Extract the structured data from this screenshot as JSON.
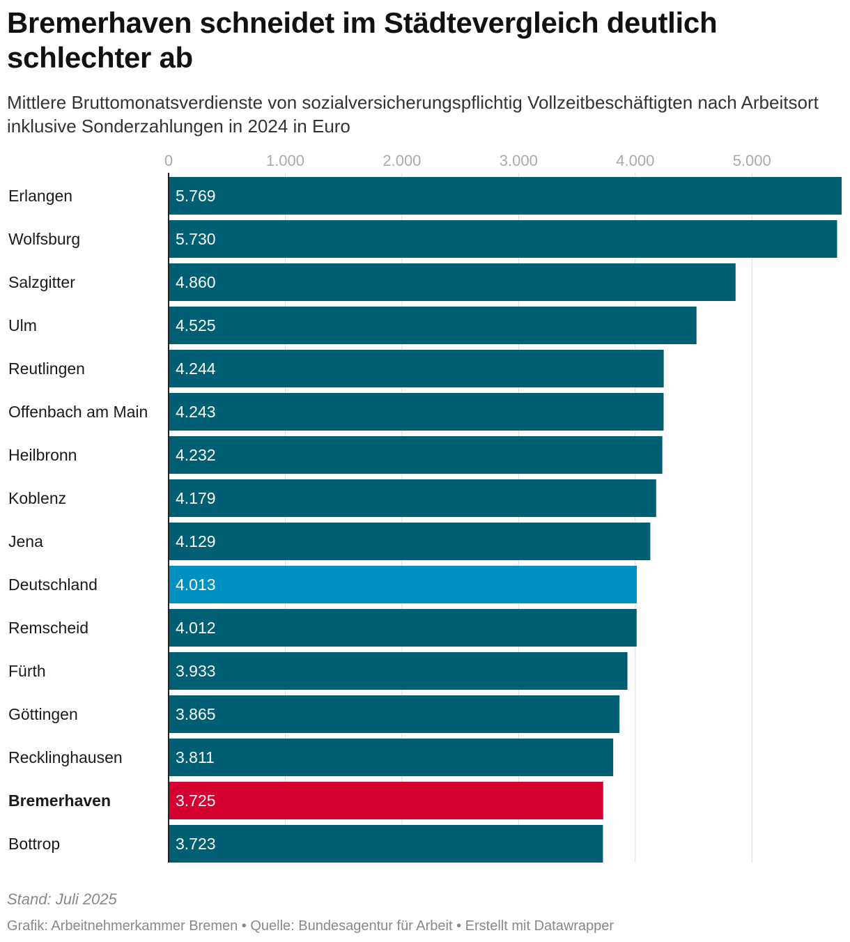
{
  "title": "Bremerhaven schneidet im Städtevergleich deutlich schlechter ab",
  "subtitle": "Mittlere Bruttomonatsverdienste von sozialversicherungspflichtig Vollzeitbeschäftigten nach Arbeitsort inklusive Sonderzahlungen in 2024 in Euro",
  "footer": {
    "note": "Stand: Juli 2025",
    "credit_graphic": "Grafik: Arbeitnehmerkammer Bremen",
    "separator": " • ",
    "credit_source": "Quelle: Bundesagentur für Arbeit",
    "credit_tool": "Erstellt mit Datawrapper"
  },
  "colors": {
    "default_bar": "#005f73",
    "germany_bar": "#0091c2",
    "highlight_bar": "#d50032",
    "grid": "#dddddd",
    "axis": "#222222",
    "tick_label": "#aaaaaa",
    "value_label": "#ffffff"
  },
  "chart_data": {
    "type": "bar",
    "orientation": "horizontal",
    "title": "Bremerhaven schneidet im Städtevergleich deutlich schlechter ab",
    "xlabel": "",
    "ylabel": "",
    "xlim": [
      0,
      5769
    ],
    "ticks": [
      0,
      1000,
      2000,
      3000,
      4000,
      5000
    ],
    "tick_labels": [
      "0",
      "1.000",
      "2.000",
      "3.000",
      "4.000",
      "5.000"
    ],
    "grid": true,
    "categories": [
      "Erlangen",
      "Wolfsburg",
      "Salzgitter",
      "Ulm",
      "Reutlingen",
      "Offenbach am Main",
      "Heilbronn",
      "Koblenz",
      "Jena",
      "Deutschland",
      "Remscheid",
      "Fürth",
      "Göttingen",
      "Recklinghausen",
      "Bremerhaven",
      "Bottrop"
    ],
    "values": [
      5769,
      5730,
      4860,
      4525,
      4244,
      4243,
      4232,
      4179,
      4129,
      4013,
      4012,
      3933,
      3865,
      3811,
      3725,
      3723
    ],
    "value_labels": [
      "5.769",
      "5.730",
      "4.860",
      "4.525",
      "4.244",
      "4.243",
      "4.232",
      "4.179",
      "4.129",
      "4.013",
      "4.012",
      "3.933",
      "3.865",
      "3.811",
      "3.725",
      "3.723"
    ],
    "bar_color_keys": [
      "default",
      "default",
      "default",
      "default",
      "default",
      "default",
      "default",
      "default",
      "default",
      "germany",
      "default",
      "default",
      "default",
      "default",
      "highlight",
      "default"
    ],
    "bold_categories": [
      "Bremerhaven"
    ]
  }
}
